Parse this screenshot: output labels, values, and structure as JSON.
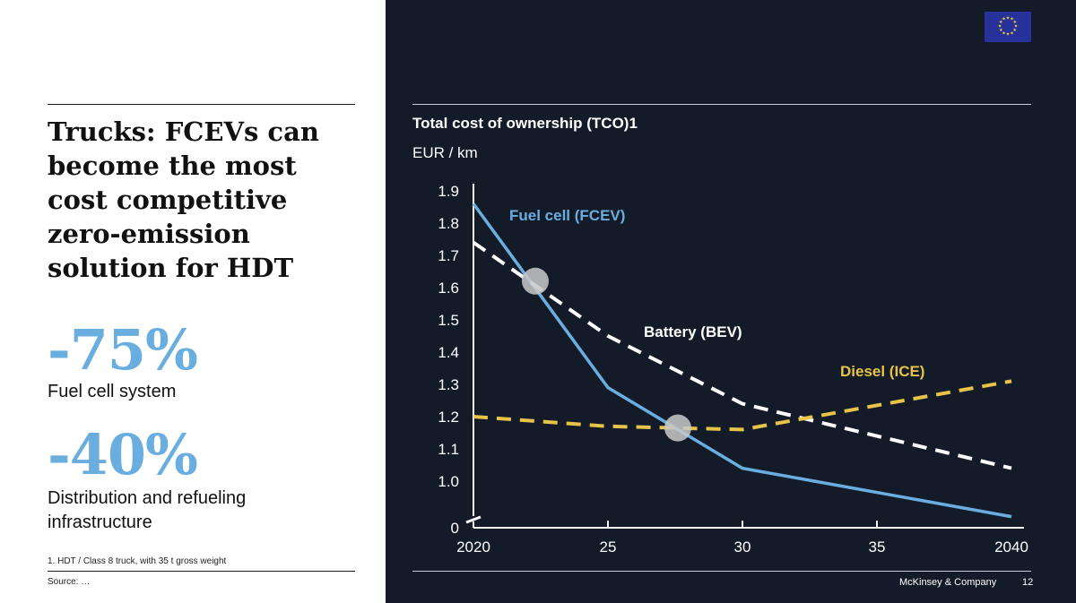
{
  "slide": {
    "headline": "Trucks: FCEVs can become the most cost competitive zero-emission solution for HDT",
    "stats": [
      {
        "value": "-75%",
        "label": "Fuel cell system"
      },
      {
        "value": "-40%",
        "label": "Distribution and refueling infrastructure"
      }
    ],
    "footnote": "1.   HDT / Class 8 truck, with 35 t gross weight",
    "source": "Source: …",
    "brand": "McKinsey & Company",
    "page_number": "12",
    "icons": {
      "eu_flag": "eu-flag-icon"
    },
    "colors": {
      "accent_blue": "#6aaee0",
      "background_dark": "#141b28"
    }
  },
  "chart_data": {
    "type": "line",
    "title": "Total cost of ownership (TCO)1",
    "ylabel": "EUR / km",
    "xlabel": "",
    "x": [
      2020,
      2025,
      2030,
      2035,
      2040
    ],
    "x_tick_labels": [
      "2020",
      "25",
      "30",
      "35",
      "2040"
    ],
    "y_ticks": [
      1.0,
      1.1,
      1.2,
      1.3,
      1.4,
      1.5,
      1.6,
      1.7,
      1.8,
      1.9
    ],
    "y_tick_labels": [
      "1.0",
      "1.1",
      "1.2",
      "1.3",
      "1.4",
      "1.5",
      "1.6",
      "1.7",
      "1.8",
      "1.9"
    ],
    "y_zero_label": "0",
    "ylim": [
      0.85,
      1.9
    ],
    "axis_break": true,
    "grid": false,
    "legend": "inline labels",
    "series": [
      {
        "name": "Fuel cell (FCEV)",
        "color": "#6aaee0",
        "style": "solid",
        "points": [
          [
            2020,
            1.86
          ],
          [
            2025,
            1.29
          ],
          [
            2030,
            1.04
          ],
          [
            2040,
            0.89
          ]
        ]
      },
      {
        "name": "Battery (BEV)",
        "color": "#ffffff",
        "style": "dashed",
        "points": [
          [
            2020,
            1.74
          ],
          [
            2025,
            1.45
          ],
          [
            2030,
            1.24
          ],
          [
            2040,
            1.04
          ]
        ]
      },
      {
        "name": "Diesel (ICE)",
        "color": "#e8c34a",
        "style": "dashed",
        "points": [
          [
            2020,
            1.2
          ],
          [
            2025,
            1.17
          ],
          [
            2030,
            1.16
          ],
          [
            2040,
            1.31
          ]
        ]
      }
    ],
    "markers": [
      {
        "label": "FCEV-BEV crossover",
        "x": 2022.3,
        "y": 1.62
      },
      {
        "label": "FCEV-ICE crossover",
        "x": 2027.6,
        "y": 1.165
      }
    ]
  }
}
